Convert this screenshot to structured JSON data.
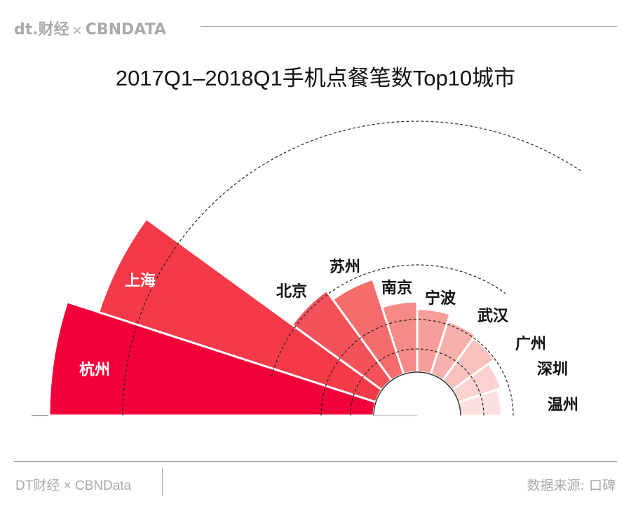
{
  "header": {
    "logo_dt": "dt.财经",
    "logo_sep": "×",
    "logo_cbn": "CBNDATA"
  },
  "chart_data": {
    "type": "radial-bar",
    "title": "2017Q1–2018Q1手机点餐笔数Top10城市",
    "categories": [
      "杭州",
      "上海",
      "北京",
      "苏州",
      "南京",
      "宁波",
      "武汉",
      "广州",
      "深圳",
      "温州"
    ],
    "values": [
      100,
      91,
      42,
      39,
      31,
      29,
      27,
      26,
      24,
      23
    ],
    "value_note": "relative bar length, Hangzhou = 100 (no values printed)",
    "colors": [
      "#f2003a",
      "#f43a48",
      "#f4525a",
      "#f46c6c",
      "#f58a86",
      "#f79e9a",
      "#f8b0ac",
      "#f9c2bf",
      "#fbd2d0",
      "#fce0df"
    ],
    "grid": "dashed concentric arcs",
    "label_inside": [
      "#ffffff"
    ],
    "label_color": "#111111"
  },
  "footer": {
    "left": "DT财经 × CBNData",
    "right": "数据来源: 口碑"
  }
}
